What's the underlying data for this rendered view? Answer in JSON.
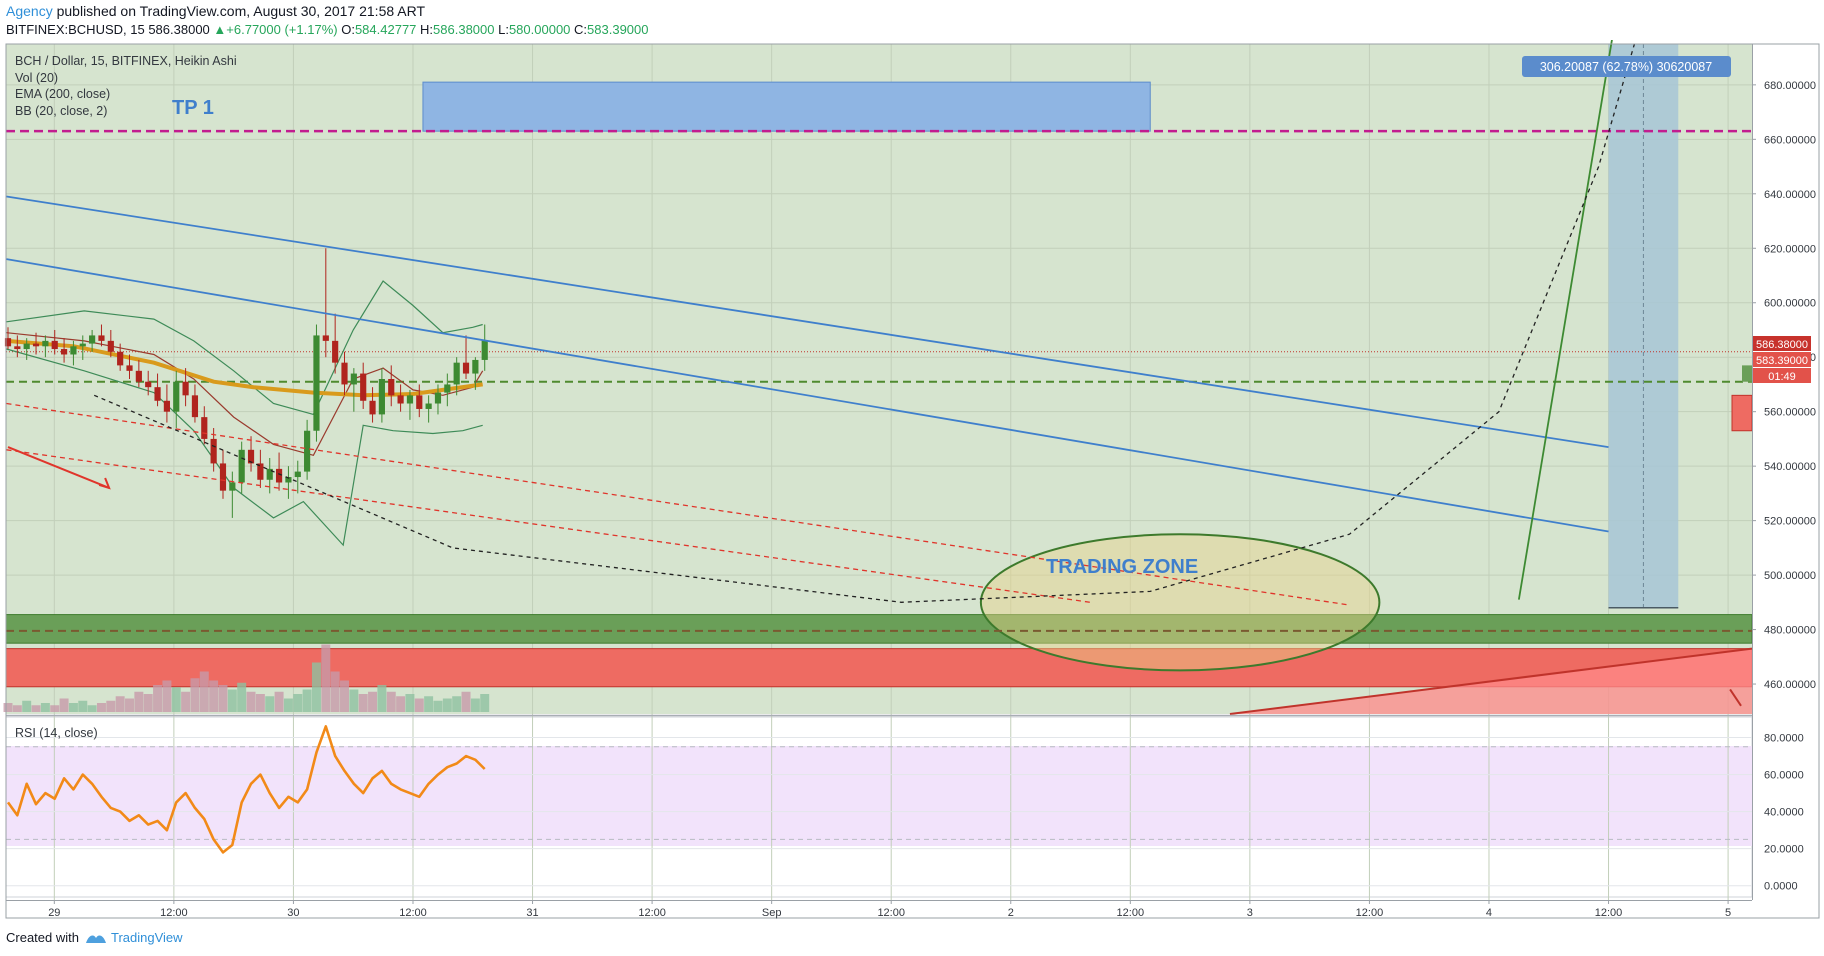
{
  "header": {
    "author": "Agency",
    "published": "published on TradingView.com, August 30, 2017 21:58 ART"
  },
  "quote": {
    "symbol": "BITFINEX:BCHUSD, 15",
    "last": "586.38000",
    "change": "+6.77000 (+1.17%)",
    "o_label": "O:",
    "o_value": "584.42777",
    "h_label": "H:",
    "h_value": "586.38000",
    "l_label": "L:",
    "l_value": "580.00000",
    "c_label": "C:",
    "c_value": "583.39000"
  },
  "legend": {
    "title": "BCH / Dollar, 15, BITFINEX, Heikin Ashi",
    "vol": "Vol (20)",
    "ema": "EMA (200, close)",
    "bb": "BB (20, close, 2)",
    "rsi": "RSI (14, close)"
  },
  "annotations": {
    "tp1": "TP 1",
    "trading_zone": "TRADING ZONE",
    "measure": "306.20087 (62.78%) 30620087"
  },
  "footer": {
    "created_with": "Created with",
    "brand": "TradingView"
  },
  "colors": {
    "chart_bg": "#d6e4cf",
    "tp_line": "#c21c8f",
    "trend_blue": "#3f7fcc",
    "ema": "#d99a1c",
    "bull": "#3d8a32",
    "bear": "#b0241e",
    "red_zone": "#ee6b62",
    "green_zone": "#6a9f58",
    "rsi": "#f28a18",
    "rsi_band": "#f2e3fb"
  },
  "chart_data": {
    "type": "candlestick",
    "price_axis": {
      "range": [
        449,
        695
      ],
      "ticks": [
        "680.00000",
        "660.00000",
        "640.00000",
        "620.00000",
        "600.00000",
        "580.00000",
        "560.00000",
        "540.00000",
        "520.00000",
        "500.00000",
        "480.00000",
        "460.00000"
      ],
      "tick_values": [
        680,
        660,
        640,
        620,
        600,
        580,
        560,
        540,
        520,
        500,
        480,
        460
      ],
      "last_price_label": "586.38000",
      "close_label": "583.39000",
      "countdown": "01:49"
    },
    "time_axis": {
      "labels": [
        "29",
        "12:00",
        "30",
        "12:00",
        "31",
        "12:00",
        "Sep",
        "12:00",
        "2",
        "12:00",
        "3",
        "12:00",
        "4",
        "12:00",
        "5"
      ],
      "positions": [
        0,
        12,
        24,
        36,
        48,
        60,
        72,
        84,
        96,
        108,
        120,
        132,
        144,
        156,
        168
      ],
      "unit": "hours from Aug 29 00:00",
      "range": [
        -4.85,
        170.4
      ]
    },
    "levels": {
      "tp1": 663,
      "support_dashed": 571,
      "low_dashed": 479.5,
      "last_dotted": 582
    },
    "zones": {
      "tp1_box": {
        "t": [
          37,
          110
        ],
        "p": [
          663,
          681
        ]
      },
      "green_zone": {
        "p": [
          475,
          485.5
        ]
      },
      "red_zone": {
        "p": [
          459,
          473
        ]
      },
      "trading_zone_ellipse": {
        "center": [
          113,
          490
        ],
        "radius_t": 20,
        "radius_p": 25
      },
      "measure_box": {
        "t": [
          156,
          163
        ],
        "p": [
          488,
          695
        ]
      }
    },
    "ohlc": [
      [
        587,
        591,
        583,
        584
      ],
      [
        584,
        588,
        580,
        583
      ],
      [
        583,
        587,
        579,
        585
      ],
      [
        585,
        589,
        581,
        584
      ],
      [
        584,
        588,
        580,
        586
      ],
      [
        586,
        590,
        581,
        583
      ],
      [
        583,
        587,
        578,
        581
      ],
      [
        581,
        586,
        577,
        584
      ],
      [
        584,
        588,
        579,
        585
      ],
      [
        585,
        590,
        582,
        588
      ],
      [
        588,
        592,
        584,
        586
      ],
      [
        586,
        590,
        580,
        582
      ],
      [
        582,
        585,
        575,
        577
      ],
      [
        577,
        581,
        572,
        575
      ],
      [
        575,
        579,
        569,
        571
      ],
      [
        571,
        575,
        566,
        569
      ],
      [
        569,
        574,
        562,
        564
      ],
      [
        564,
        570,
        556,
        560
      ],
      [
        560,
        575,
        554,
        571
      ],
      [
        571,
        576,
        562,
        566
      ],
      [
        566,
        570,
        556,
        558
      ],
      [
        558,
        562,
        548,
        550
      ],
      [
        550,
        554,
        538,
        541
      ],
      [
        541,
        546,
        528,
        531
      ],
      [
        531,
        538,
        521,
        534
      ],
      [
        534,
        549,
        530,
        546
      ],
      [
        546,
        551,
        538,
        541
      ],
      [
        541,
        546,
        532,
        535
      ],
      [
        535,
        543,
        530,
        539
      ],
      [
        539,
        545,
        531,
        534
      ],
      [
        534,
        540,
        528,
        536
      ],
      [
        536,
        542,
        530,
        538
      ],
      [
        538,
        557,
        535,
        553
      ],
      [
        553,
        592,
        549,
        588
      ],
      [
        588,
        620,
        580,
        586
      ],
      [
        586,
        596,
        574,
        578
      ],
      [
        578,
        582,
        566,
        570
      ],
      [
        570,
        576,
        560,
        574
      ],
      [
        574,
        578,
        561,
        564
      ],
      [
        564,
        569,
        556,
        559
      ],
      [
        559,
        576,
        556,
        572
      ],
      [
        572,
        577,
        562,
        566
      ],
      [
        566,
        570,
        560,
        563
      ],
      [
        563,
        568,
        557,
        566
      ],
      [
        566,
        570,
        558,
        561
      ],
      [
        561,
        566,
        556,
        563
      ],
      [
        563,
        570,
        559,
        567
      ],
      [
        567,
        574,
        562,
        570
      ],
      [
        570,
        580,
        566,
        578
      ],
      [
        578,
        588,
        572,
        574
      ],
      [
        574,
        580,
        568,
        579
      ],
      [
        579,
        592,
        575,
        586
      ]
    ],
    "ema200": [
      [
        -4.8,
        586
      ],
      [
        2,
        584
      ],
      [
        10,
        578
      ],
      [
        16,
        571
      ],
      [
        20,
        569
      ],
      [
        26,
        567
      ],
      [
        31,
        566
      ],
      [
        36,
        566.5
      ],
      [
        40,
        568.5
      ],
      [
        43,
        570
      ]
    ],
    "bb_upper": [
      [
        -4.8,
        593
      ],
      [
        3,
        597
      ],
      [
        10,
        594
      ],
      [
        14,
        586
      ],
      [
        18,
        575
      ],
      [
        22,
        563
      ],
      [
        26,
        559
      ],
      [
        30,
        590
      ],
      [
        33,
        608
      ],
      [
        36,
        599
      ],
      [
        39,
        589
      ],
      [
        42,
        591
      ],
      [
        43,
        592
      ]
    ],
    "bb_basis": [
      [
        -4.8,
        589
      ],
      [
        3,
        586
      ],
      [
        10,
        581
      ],
      [
        14,
        572
      ],
      [
        18,
        558
      ],
      [
        22,
        548
      ],
      [
        26,
        544
      ],
      [
        30,
        572
      ],
      [
        33,
        576
      ],
      [
        36,
        568
      ],
      [
        39,
        566
      ],
      [
        42,
        569
      ],
      [
        43,
        575
      ]
    ],
    "bb_lower": [
      [
        -4.8,
        583
      ],
      [
        3,
        575
      ],
      [
        10,
        567
      ],
      [
        14,
        553
      ],
      [
        18,
        532
      ],
      [
        22,
        521
      ],
      [
        25,
        527
      ],
      [
        29,
        511
      ],
      [
        31,
        555
      ],
      [
        34,
        553
      ],
      [
        38,
        552
      ],
      [
        41,
        553
      ],
      [
        43,
        555
      ]
    ],
    "trendlines": [
      {
        "name": "upper-channel",
        "color": "#3f7fcc",
        "points": [
          [
            -4.8,
            639
          ],
          [
            156,
            547
          ]
        ]
      },
      {
        "name": "lower-channel",
        "color": "#3f7fcc",
        "points": [
          [
            -4.8,
            616
          ],
          [
            156,
            516
          ]
        ]
      },
      {
        "name": "red-dashed-1",
        "color": "#e0352b",
        "points": [
          [
            -4.8,
            563
          ],
          [
            130,
            489
          ]
        ]
      },
      {
        "name": "red-dashed-2",
        "color": "#e0352b",
        "points": [
          [
            -4.8,
            546
          ],
          [
            104,
            490
          ]
        ]
      },
      {
        "name": "green-projection",
        "color": "#3d8a32",
        "points": [
          [
            147,
            491
          ],
          [
            156.5,
            700
          ]
        ]
      }
    ],
    "curve_dashed": [
      [
        4,
        566
      ],
      [
        40,
        510
      ],
      [
        85,
        490
      ],
      [
        110,
        494
      ],
      [
        130,
        515
      ],
      [
        145,
        560
      ],
      [
        155,
        650
      ],
      [
        159,
        700
      ]
    ],
    "volume": [
      4,
      3,
      5,
      3,
      4,
      3,
      6,
      4,
      5,
      3,
      4,
      5,
      7,
      6,
      9,
      8,
      12,
      14,
      11,
      9,
      15,
      18,
      14,
      12,
      10,
      13,
      9,
      8,
      7,
      9,
      6,
      8,
      10,
      22,
      30,
      18,
      14,
      10,
      8,
      9,
      12,
      9,
      7,
      8,
      6,
      7,
      5,
      6,
      7,
      9,
      6,
      8
    ],
    "rsi": {
      "ticks": [
        "80.0000",
        "60.0000",
        "40.0000",
        "20.0000",
        "0.0000"
      ],
      "tick_values": [
        80,
        60,
        40,
        20,
        0
      ],
      "band": [
        25,
        75
      ],
      "range": [
        -5,
        90
      ],
      "values": [
        45,
        38,
        55,
        44,
        50,
        47,
        58,
        52,
        60,
        55,
        48,
        42,
        40,
        35,
        38,
        33,
        35,
        30,
        45,
        50,
        42,
        36,
        25,
        18,
        22,
        45,
        55,
        60,
        50,
        42,
        48,
        45,
        52,
        72,
        86,
        70,
        62,
        55,
        50,
        58,
        62,
        55,
        52,
        50,
        48,
        55,
        60,
        64,
        66,
        70,
        68,
        63
      ]
    }
  }
}
